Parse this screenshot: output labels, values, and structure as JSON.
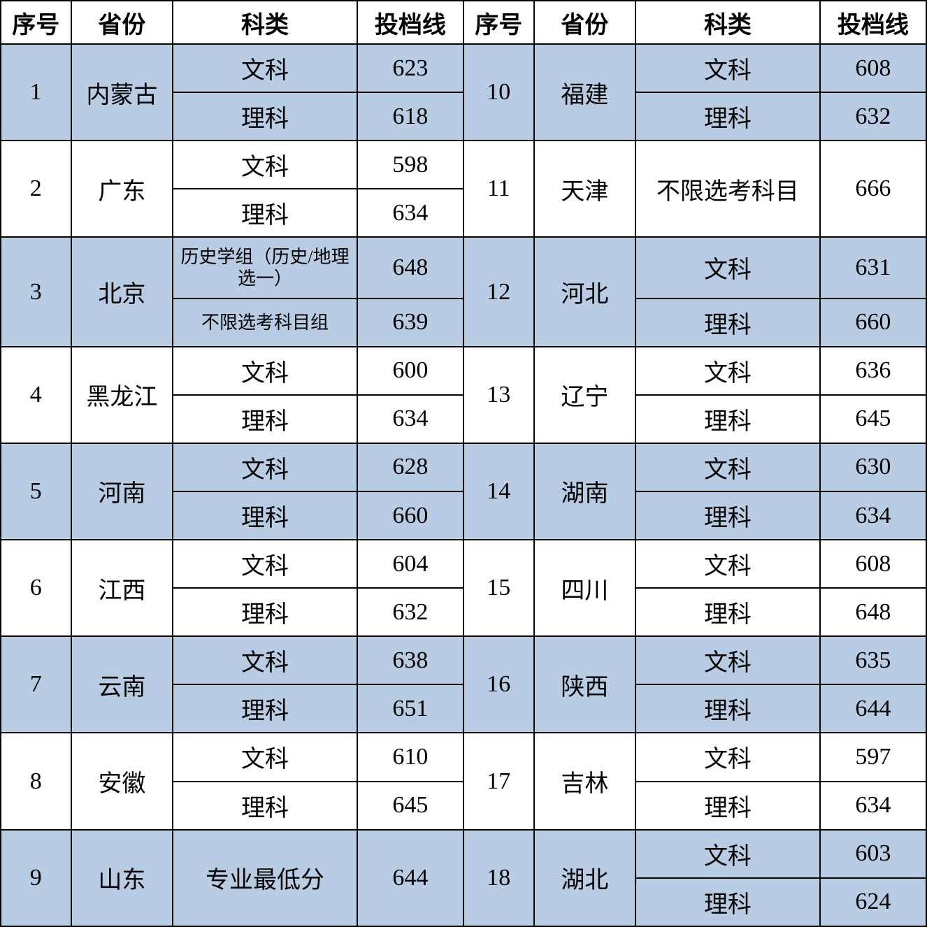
{
  "colors": {
    "shade": "#b8cce4",
    "plain": "#ffffff",
    "border": "#050505",
    "text": "#000000"
  },
  "typography": {
    "font_family": "SimSun",
    "cell_fontsize": 34,
    "header_fontsize": 34,
    "small_fontsize": 26
  },
  "headers": {
    "seq": "序号",
    "prov": "省份",
    "kind": "科类",
    "score": "投档线"
  },
  "rows": [
    {
      "seq": "1",
      "prov": "内蒙古",
      "a_kind": "文科",
      "a_score": "623",
      "b_kind": "理科",
      "b_score": "618",
      "shade": true,
      "seq2": "10",
      "prov2": "福建",
      "a2_kind": "文科",
      "a2_score": "608",
      "b2_kind": "理科",
      "b2_score": "632"
    },
    {
      "seq": "2",
      "prov": "广东",
      "a_kind": "文科",
      "a_score": "598",
      "b_kind": "理科",
      "b_score": "634",
      "shade": false,
      "seq2": "11",
      "prov2": "天津",
      "merged2": true,
      "a2_kind": "不限选考科目",
      "a2_score": "666"
    },
    {
      "seq": "3",
      "prov": "北京",
      "a_kind": "历史学组（历史/地理选一）",
      "a_small": true,
      "a_score": "648",
      "b_kind": "不限选考科目组",
      "b_small": true,
      "b_score": "639",
      "shade": true,
      "seq2": "12",
      "prov2": "河北",
      "a2_kind": "文科",
      "a2_score": "631",
      "b2_kind": "理科",
      "b2_score": "660"
    },
    {
      "seq": "4",
      "prov": "黑龙江",
      "a_kind": "文科",
      "a_score": "600",
      "b_kind": "理科",
      "b_score": "634",
      "shade": false,
      "seq2": "13",
      "prov2": "辽宁",
      "a2_kind": "文科",
      "a2_score": "636",
      "b2_kind": "理科",
      "b2_score": "645"
    },
    {
      "seq": "5",
      "prov": "河南",
      "a_kind": "文科",
      "a_score": "628",
      "b_kind": "理科",
      "b_score": "660",
      "shade": true,
      "seq2": "14",
      "prov2": "湖南",
      "a2_kind": "文科",
      "a2_score": "630",
      "b2_kind": "理科",
      "b2_score": "634"
    },
    {
      "seq": "6",
      "prov": "江西",
      "a_kind": "文科",
      "a_score": "604",
      "b_kind": "理科",
      "b_score": "632",
      "shade": false,
      "seq2": "15",
      "prov2": "四川",
      "a2_kind": "文科",
      "a2_score": "608",
      "b2_kind": "理科",
      "b2_score": "648"
    },
    {
      "seq": "7",
      "prov": "云南",
      "a_kind": "文科",
      "a_score": "638",
      "b_kind": "理科",
      "b_score": "651",
      "shade": true,
      "seq2": "16",
      "prov2": "陕西",
      "a2_kind": "文科",
      "a2_score": "635",
      "b2_kind": "理科",
      "b2_score": "644"
    },
    {
      "seq": "8",
      "prov": "安徽",
      "a_kind": "文科",
      "a_score": "610",
      "b_kind": "理科",
      "b_score": "645",
      "shade": false,
      "seq2": "17",
      "prov2": "吉林",
      "a2_kind": "文科",
      "a2_score": "597",
      "b2_kind": "理科",
      "b2_score": "634"
    },
    {
      "seq": "9",
      "prov": "山东",
      "merged": true,
      "a_kind": "专业最低分",
      "a_score": "644",
      "shade": true,
      "seq2": "18",
      "prov2": "湖北",
      "a2_kind": "文科",
      "a2_score": "603",
      "b2_kind": "理科",
      "b2_score": "624"
    }
  ]
}
